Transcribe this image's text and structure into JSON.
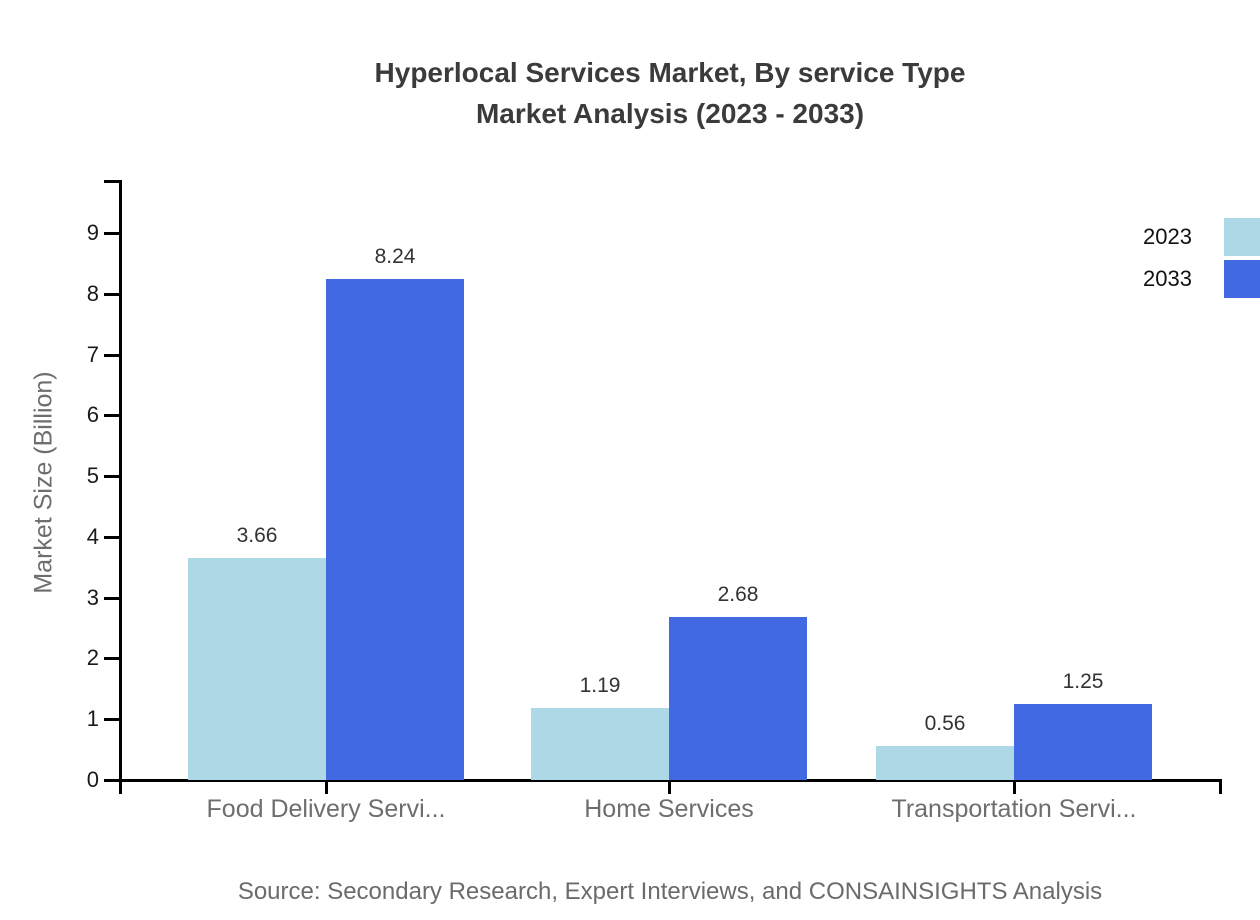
{
  "title": {
    "line1": "Hyperlocal Services Market, By service Type",
    "line2": "Market Analysis (2023 - 2033)"
  },
  "source": "Source: Secondary Research, Expert Interviews, and CONSAINSIGHTS Analysis",
  "chart_data": {
    "type": "bar",
    "categories": [
      "Food Delivery Servi...",
      "Home Services",
      "Transportation Servi..."
    ],
    "series": [
      {
        "name": "2023",
        "color": "#ADD8E6",
        "values": [
          3.66,
          1.19,
          0.56
        ]
      },
      {
        "name": "2033",
        "color": "#4169E1",
        "values": [
          8.24,
          2.68,
          1.25
        ]
      }
    ],
    "value_labels": [
      [
        "3.66",
        "1.19",
        "0.56"
      ],
      [
        "8.24",
        "2.68",
        "1.25"
      ]
    ],
    "xlabel": "",
    "ylabel": "Market Size (Billion)",
    "ylim": [
      0,
      9
    ],
    "yticks": [
      "0",
      "1",
      "2",
      "3",
      "4",
      "5",
      "6",
      "7",
      "8",
      "9"
    ],
    "grid": false,
    "data_labels": true,
    "legend_position": "top-right",
    "axis_color": "#000000",
    "label_color": "#333333",
    "tick_label_color": "#1a1a1a",
    "category_label_color": "#6e6e6e"
  }
}
